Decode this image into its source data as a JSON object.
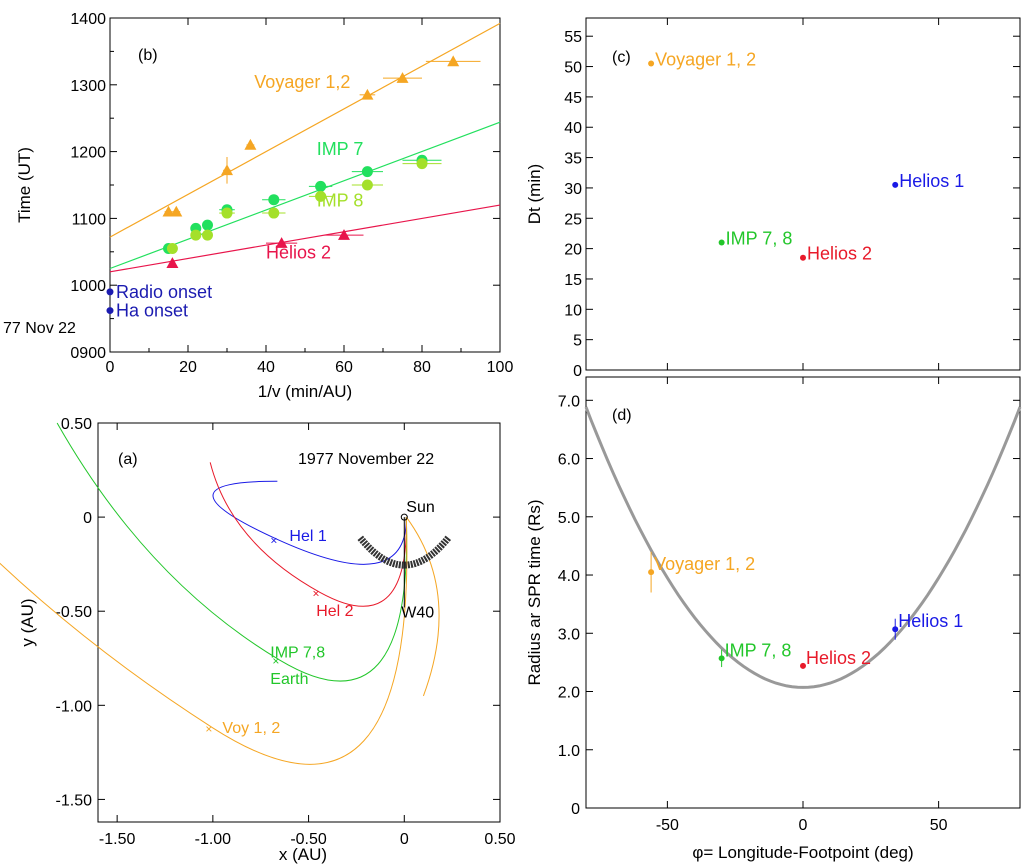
{
  "chart_data": [
    {
      "id": "b",
      "type": "scatter",
      "panel_label": "(b)",
      "xlabel": "1/v (min/AU)",
      "ylabel": "Time (UT)",
      "xlim": [
        0,
        100
      ],
      "ylim": [
        900,
        1400
      ],
      "xticks": [
        0,
        20,
        40,
        60,
        80,
        100
      ],
      "yticks": [
        {
          "v": 900,
          "label": "0900"
        },
        {
          "v": 1000,
          "label": "1000"
        },
        {
          "v": 1100,
          "label": "1100"
        },
        {
          "v": 1200,
          "label": "1200"
        },
        {
          "v": 1300,
          "label": "1300"
        },
        {
          "v": 1400,
          "label": "1400"
        }
      ],
      "date_label": "77 Nov 22",
      "series": [
        {
          "name": "Voyager 1,2",
          "color": "#f5a623",
          "marker": "triangle",
          "label_pos": [
            37,
            1295
          ],
          "fit": [
            [
              0,
              1072
            ],
            [
              100,
              1392
            ]
          ],
          "points": [
            {
              "x": 15,
              "y": 1110,
              "xerr": 1,
              "yerr": 0
            },
            {
              "x": 17,
              "y": 1110,
              "xerr": 1,
              "yerr": 0
            },
            {
              "x": 30,
              "y": 1172,
              "xerr": 1,
              "yerr": 20
            },
            {
              "x": 36,
              "y": 1210,
              "xerr": 1,
              "yerr": 0
            },
            {
              "x": 66,
              "y": 1285,
              "xerr": 2,
              "yerr": 0
            },
            {
              "x": 75,
              "y": 1310,
              "xerr": 5,
              "yerr": 0
            },
            {
              "x": 88,
              "y": 1335,
              "xerr": 7,
              "yerr": 0
            }
          ]
        },
        {
          "name": "IMP 7",
          "color": "#22e05e",
          "marker": "circle",
          "label_pos": [
            53,
            1195
          ],
          "fit": [
            [
              0,
              1025
            ],
            [
              100,
              1244
            ]
          ],
          "points": [
            {
              "x": 15,
              "y": 1055,
              "xerr": 1
            },
            {
              "x": 22,
              "y": 1085,
              "xerr": 1
            },
            {
              "x": 25,
              "y": 1090,
              "xerr": 1
            },
            {
              "x": 30,
              "y": 1113,
              "xerr": 2
            },
            {
              "x": 42,
              "y": 1128,
              "xerr": 3
            },
            {
              "x": 54,
              "y": 1148,
              "xerr": 3
            },
            {
              "x": 66,
              "y": 1170,
              "xerr": 4
            },
            {
              "x": 80,
              "y": 1187,
              "xerr": 5
            }
          ]
        },
        {
          "name": "IMP 8",
          "color": "#a4e02a",
          "marker": "circle",
          "label_pos": [
            53,
            1118
          ],
          "points": [
            {
              "x": 16,
              "y": 1055,
              "xerr": 1
            },
            {
              "x": 22,
              "y": 1075,
              "xerr": 1
            },
            {
              "x": 25,
              "y": 1075,
              "xerr": 1
            },
            {
              "x": 30,
              "y": 1108,
              "xerr": 2
            },
            {
              "x": 42,
              "y": 1108,
              "xerr": 3
            },
            {
              "x": 54,
              "y": 1133,
              "xerr": 3
            },
            {
              "x": 66,
              "y": 1150,
              "xerr": 4
            },
            {
              "x": 80,
              "y": 1182,
              "xerr": 5
            }
          ]
        },
        {
          "name": "Helios 2",
          "color": "#e8154b",
          "marker": "triangle",
          "label_pos": [
            40,
            1040
          ],
          "fit": [
            [
              0,
              1020
            ],
            [
              100,
              1120
            ]
          ],
          "points": [
            {
              "x": 16,
              "y": 1033,
              "xerr": 0
            },
            {
              "x": 44,
              "y": 1063,
              "xerr": 4
            },
            {
              "x": 60,
              "y": 1075,
              "xerr": 5
            }
          ]
        }
      ],
      "onsets": [
        {
          "label": "Radio onset",
          "y": 990,
          "color": "#1b1bb0"
        },
        {
          "label": "Ha onset",
          "y": 962,
          "color": "#1b1bb0"
        }
      ]
    },
    {
      "id": "c",
      "type": "scatter",
      "panel_label": "(c)",
      "xlabel": "",
      "ylabel": "Dt  (min)",
      "xlim": [
        -80,
        80
      ],
      "ylim": [
        0,
        58
      ],
      "yticks": [
        0,
        5,
        10,
        15,
        20,
        25,
        30,
        35,
        40,
        45,
        50,
        55
      ],
      "points": [
        {
          "name": "Voyager 1, 2",
          "x": -56,
          "y": 50.5,
          "color": "#f5a623"
        },
        {
          "name": "Helios 1",
          "x": 34,
          "y": 30.5,
          "color": "#1a1ae6"
        },
        {
          "name": "IMP 7, 8",
          "x": -30,
          "y": 21,
          "color": "#22c62a"
        },
        {
          "name": "Helios 2",
          "x": 0,
          "y": 18.5,
          "color": "#e81a2a"
        }
      ]
    },
    {
      "id": "a",
      "type": "scatter",
      "panel_label": "(a)",
      "title": "1977 November 22",
      "xlabel": "x (AU)",
      "ylabel": "y (AU)",
      "xlim": [
        -1.6,
        0.5
      ],
      "ylim": [
        -1.62,
        0.5
      ],
      "xticks": [
        {
          "v": -1.5,
          "label": "-1.50"
        },
        {
          "v": -1.0,
          "label": "-1.00"
        },
        {
          "v": -0.5,
          "label": "-0.50"
        },
        {
          "v": 0,
          "label": "0"
        },
        {
          "v": 0.5,
          "label": "0.50"
        }
      ],
      "yticks": [
        {
          "v": 0.5,
          "label": "0.50"
        },
        {
          "v": 0,
          "label": "0"
        },
        {
          "v": -0.5,
          "label": "-0.50"
        },
        {
          "v": -1.0,
          "label": "-1.00"
        },
        {
          "v": -1.5,
          "label": "-1.50"
        }
      ],
      "sun_label": "Sun",
      "flare_label": "W40",
      "spacecraft": [
        {
          "name": "Hel 1",
          "x": -0.66,
          "y": -0.12,
          "color": "#1a1ae6",
          "r": 0.34,
          "label_pos": [
            -0.6,
            -0.1
          ]
        },
        {
          "name": "Hel 2",
          "x": -0.44,
          "y": -0.4,
          "color": "#e81a2a",
          "r": 0.52,
          "label_pos": [
            -0.46,
            -0.5
          ]
        },
        {
          "name": "IMP 7,8",
          "x": -0.65,
          "y": -0.76,
          "color": "#22c62a",
          "r": 0.93,
          "label_pos": [
            -0.7,
            -0.72
          ]
        },
        {
          "name": "Voy 1, 2",
          "x": -1.0,
          "y": -1.12,
          "color": "#f5a623",
          "r": 1.43,
          "label_pos": [
            -0.95,
            -1.12
          ]
        }
      ],
      "earth_label": "Earth"
    },
    {
      "id": "d",
      "type": "scatter",
      "panel_label": "(d)",
      "xlabel": "φ= Longitude-Footpoint (deg)",
      "ylabel": "Radius ar SPR time  (Rs)",
      "xlim": [
        -80,
        80
      ],
      "ylim": [
        0,
        7.4
      ],
      "xticks": [
        -50,
        0,
        50
      ],
      "yticks": [
        {
          "v": 0,
          "label": "0"
        },
        {
          "v": 1,
          "label": "1.0"
        },
        {
          "v": 2,
          "label": "2.0"
        },
        {
          "v": 3,
          "label": "3.0"
        },
        {
          "v": 4,
          "label": "4.0"
        },
        {
          "v": 5,
          "label": "5.0"
        },
        {
          "v": 6,
          "label": "6.0"
        },
        {
          "v": 7,
          "label": "7.0"
        }
      ],
      "curve": {
        "min_r": 2.07,
        "k": 0.000752,
        "color": "#999999"
      },
      "points": [
        {
          "name": "Voyager 1, 2",
          "x": -56,
          "y": 4.05,
          "yerr": 0.35,
          "color": "#f5a623"
        },
        {
          "name": "Helios 1",
          "x": 34,
          "y": 3.07,
          "yerr": 0.18,
          "color": "#1a1ae6"
        },
        {
          "name": "IMP 7, 8",
          "x": -30,
          "y": 2.57,
          "yerr": 0.15,
          "color": "#22c62a"
        },
        {
          "name": "Helios 2",
          "x": 0,
          "y": 2.44,
          "yerr": 0.05,
          "color": "#e81a2a"
        }
      ]
    }
  ]
}
